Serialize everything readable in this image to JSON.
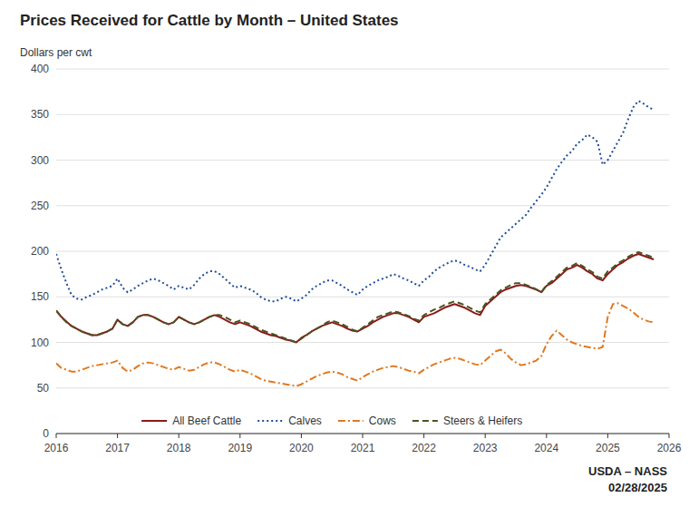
{
  "chart_data": {
    "type": "line",
    "title": "Prices Received for Cattle by Month – United States",
    "y_label": "Dollars per cwt",
    "annotations": [
      "USDA – NASS",
      "02/28/2025"
    ],
    "xlim": [
      2016.0,
      2026.0
    ],
    "xticks": [
      2016,
      2017,
      2018,
      2019,
      2020,
      2021,
      2022,
      2023,
      2024,
      2025,
      2026
    ],
    "ylim": [
      0,
      400
    ],
    "yticks": [
      0,
      50,
      100,
      150,
      200,
      250,
      300,
      350,
      400
    ],
    "grid": true,
    "legend": "bottom",
    "x": [
      2016.0,
      2016.0833333333333,
      2016.1666666666667,
      2016.25,
      2016.3333333333333,
      2016.4166666666667,
      2016.5,
      2016.5833333333333,
      2016.6666666666667,
      2016.75,
      2016.8333333333333,
      2016.9166666666667,
      2017.0,
      2017.0833333333333,
      2017.1666666666667,
      2017.25,
      2017.3333333333333,
      2017.4166666666667,
      2017.5,
      2017.5833333333333,
      2017.6666666666667,
      2017.75,
      2017.8333333333333,
      2017.9166666666667,
      2018.0,
      2018.0833333333333,
      2018.1666666666667,
      2018.25,
      2018.3333333333333,
      2018.4166666666667,
      2018.5,
      2018.5833333333333,
      2018.6666666666667,
      2018.75,
      2018.8333333333333,
      2018.9166666666667,
      2019.0,
      2019.0833333333333,
      2019.1666666666667,
      2019.25,
      2019.3333333333333,
      2019.4166666666667,
      2019.5,
      2019.5833333333333,
      2019.6666666666667,
      2019.75,
      2019.8333333333333,
      2019.9166666666667,
      2020.0,
      2020.0833333333333,
      2020.1666666666667,
      2020.25,
      2020.3333333333333,
      2020.4166666666667,
      2020.5,
      2020.5833333333333,
      2020.6666666666667,
      2020.75,
      2020.8333333333333,
      2020.9166666666667,
      2021.0,
      2021.0833333333333,
      2021.1666666666667,
      2021.25,
      2021.3333333333333,
      2021.4166666666667,
      2021.5,
      2021.5833333333333,
      2021.6666666666667,
      2021.75,
      2021.8333333333333,
      2021.9166666666667,
      2022.0,
      2022.0833333333333,
      2022.1666666666667,
      2022.25,
      2022.3333333333333,
      2022.4166666666667,
      2022.5,
      2022.5833333333333,
      2022.6666666666667,
      2022.75,
      2022.8333333333333,
      2022.9166666666667,
      2023.0,
      2023.0833333333333,
      2023.1666666666667,
      2023.25,
      2023.3333333333333,
      2023.4166666666667,
      2023.5,
      2023.5833333333333,
      2023.6666666666667,
      2023.75,
      2023.8333333333333,
      2023.9166666666667,
      2024.0,
      2024.0833333333333,
      2024.1666666666667,
      2024.25,
      2024.3333333333333,
      2024.4166666666667,
      2024.5,
      2024.5833333333333,
      2024.6666666666667,
      2024.75,
      2024.8333333333333,
      2024.9166666666667,
      2025.0,
      2025.0833333333333,
      2025.1666666666667,
      2025.25,
      2025.3333333333333,
      2025.4166666666667,
      2025.5,
      2025.5833333333333,
      2025.6666666666667,
      2025.75
    ],
    "series": [
      {
        "name": "All Beef Cattle",
        "color": "#8B1A1A",
        "line_style": "solid",
        "values": [
          135,
          128,
          123,
          118,
          115,
          112,
          110,
          108,
          108,
          110,
          112,
          115,
          125,
          120,
          118,
          122,
          128,
          130,
          130,
          128,
          125,
          122,
          120,
          122,
          128,
          125,
          122,
          120,
          122,
          125,
          128,
          130,
          128,
          125,
          122,
          120,
          122,
          120,
          118,
          115,
          112,
          110,
          108,
          107,
          105,
          103,
          102,
          100,
          105,
          108,
          112,
          115,
          118,
          120,
          122,
          120,
          118,
          115,
          113,
          112,
          115,
          118,
          122,
          125,
          128,
          130,
          132,
          132,
          130,
          128,
          125,
          122,
          128,
          130,
          132,
          135,
          138,
          140,
          142,
          140,
          138,
          135,
          132,
          130,
          140,
          145,
          150,
          155,
          158,
          160,
          162,
          163,
          162,
          160,
          158,
          155,
          162,
          165,
          170,
          175,
          180,
          182,
          185,
          182,
          178,
          175,
          170,
          168,
          175,
          180,
          185,
          188,
          192,
          195,
          197,
          195,
          193,
          191
        ]
      },
      {
        "name": "Calves",
        "color": "#1F4E99",
        "line_style": "dotted",
        "values": [
          197,
          180,
          165,
          152,
          148,
          147,
          150,
          152,
          155,
          158,
          160,
          162,
          170,
          160,
          155,
          158,
          162,
          165,
          168,
          170,
          168,
          165,
          162,
          158,
          162,
          160,
          158,
          163,
          170,
          175,
          178,
          178,
          175,
          170,
          165,
          160,
          162,
          160,
          158,
          155,
          150,
          147,
          145,
          145,
          148,
          150,
          148,
          145,
          148,
          152,
          158,
          162,
          165,
          168,
          168,
          165,
          162,
          158,
          155,
          152,
          158,
          162,
          165,
          168,
          170,
          172,
          175,
          173,
          170,
          168,
          165,
          162,
          168,
          172,
          178,
          182,
          185,
          188,
          190,
          188,
          185,
          183,
          180,
          178,
          185,
          195,
          205,
          215,
          220,
          225,
          230,
          235,
          240,
          248,
          255,
          262,
          270,
          280,
          290,
          298,
          305,
          310,
          318,
          322,
          328,
          325,
          320,
          295,
          300,
          310,
          320,
          330,
          345,
          358,
          365,
          362,
          358,
          355
        ]
      },
      {
        "name": "Cows",
        "color": "#E07820",
        "line_style": "dashdot",
        "values": [
          77,
          72,
          70,
          68,
          68,
          70,
          72,
          74,
          75,
          76,
          77,
          78,
          80,
          72,
          68,
          70,
          74,
          77,
          78,
          77,
          75,
          73,
          71,
          70,
          73,
          71,
          69,
          70,
          73,
          76,
          78,
          78,
          76,
          73,
          70,
          68,
          70,
          68,
          66,
          63,
          60,
          58,
          57,
          56,
          55,
          54,
          53,
          52,
          54,
          57,
          60,
          63,
          65,
          67,
          68,
          67,
          65,
          62,
          60,
          58,
          62,
          65,
          68,
          70,
          72,
          73,
          74,
          73,
          71,
          69,
          68,
          66,
          70,
          73,
          76,
          78,
          80,
          82,
          83,
          82,
          80,
          78,
          76,
          75,
          80,
          85,
          90,
          92,
          88,
          82,
          78,
          75,
          76,
          78,
          80,
          85,
          98,
          107,
          113,
          108,
          103,
          100,
          98,
          96,
          95,
          94,
          93,
          95,
          128,
          142,
          143,
          140,
          137,
          133,
          128,
          125,
          123,
          122
        ]
      },
      {
        "name": "Steers & Heifers",
        "color": "#4B5320",
        "line_style": "dashed",
        "values": [
          135,
          128,
          122,
          118,
          115,
          112,
          110,
          108,
          108,
          110,
          112,
          115,
          125,
          120,
          118,
          122,
          128,
          130,
          130,
          128,
          125,
          122,
          120,
          122,
          128,
          125,
          122,
          120,
          122,
          125,
          128,
          130,
          130,
          128,
          125,
          122,
          124,
          122,
          120,
          117,
          114,
          112,
          110,
          108,
          106,
          104,
          102,
          100,
          104,
          108,
          112,
          115,
          118,
          122,
          124,
          122,
          120,
          117,
          114,
          112,
          116,
          120,
          124,
          128,
          130,
          132,
          134,
          133,
          131,
          129,
          126,
          124,
          130,
          133,
          136,
          138,
          141,
          143,
          145,
          143,
          141,
          138,
          135,
          133,
          142,
          147,
          152,
          157,
          160,
          163,
          165,
          165,
          163,
          161,
          158,
          155,
          163,
          167,
          172,
          177,
          182,
          184,
          187,
          184,
          180,
          177,
          172,
          170,
          178,
          182,
          187,
          190,
          194,
          197,
          199,
          197,
          195,
          193
        ]
      }
    ]
  }
}
